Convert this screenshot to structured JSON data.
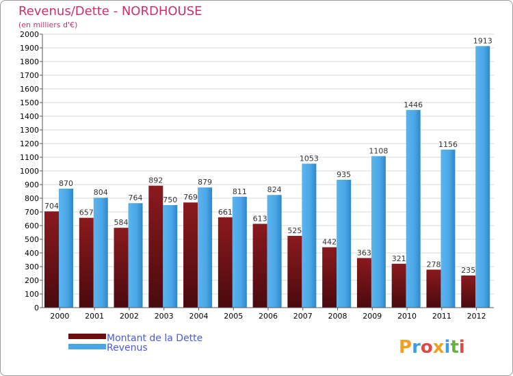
{
  "chart_data": {
    "type": "bar",
    "title": "Revenus/Dette - NORDHOUSE",
    "subtitle": "(en milliers d'€)",
    "xlabel": "",
    "ylabel": "",
    "ylim": [
      0,
      2000
    ],
    "ytick_step": 100,
    "grid": true,
    "legend_position": "bottom-left",
    "categories": [
      "2000",
      "2001",
      "2002",
      "2003",
      "2004",
      "2005",
      "2006",
      "2007",
      "2008",
      "2009",
      "2010",
      "2011",
      "2012"
    ],
    "series": [
      {
        "name": "Montant de la Dette",
        "color": "#7a1016",
        "values": [
          704,
          657,
          584,
          892,
          769,
          661,
          613,
          525,
          442,
          363,
          321,
          278,
          235
        ]
      },
      {
        "name": "Revenus",
        "color": "#4aa6e6",
        "values": [
          870,
          804,
          764,
          750,
          879,
          811,
          824,
          1053,
          935,
          1108,
          1446,
          1156,
          1913
        ]
      }
    ]
  },
  "brand": {
    "logo_letters": [
      "P",
      "r",
      "o",
      "x",
      "i",
      "t",
      "i"
    ],
    "logo_colors": [
      "#f0a020",
      "#3d9fe0",
      "#e04848",
      "#f0a020",
      "#3d9fe0",
      "#6ab040",
      "#e04848"
    ]
  }
}
